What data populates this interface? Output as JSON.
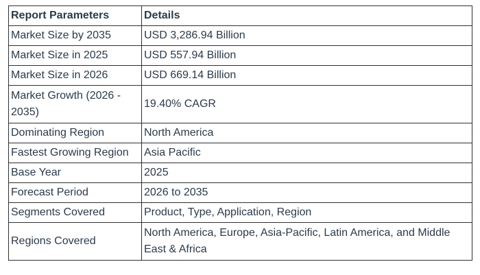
{
  "table": {
    "headers": [
      "Report Parameters",
      "Details"
    ],
    "rows": [
      {
        "param": "Market Size by 2035",
        "detail": "USD 3,286.94 Billion"
      },
      {
        "param": "Market Size in 2025",
        "detail": "USD 557.94 Billion"
      },
      {
        "param": "Market Size in 2026",
        "detail": "USD 669.14 Billion"
      },
      {
        "param": "Market Growth (2026 - 2035)",
        "detail": "19.40% CAGR"
      },
      {
        "param": "Dominating Region",
        "detail": "North America"
      },
      {
        "param": "Fastest Growing Region",
        "detail": "Asia Pacific"
      },
      {
        "param": "Base Year",
        "detail": "2025"
      },
      {
        "param": "Forecast Period",
        "detail": "2026 to 2035"
      },
      {
        "param": "Segments Covered",
        "detail": "Product, Type, Application, Region"
      },
      {
        "param": "Regions Covered",
        "detail": "North America, Europe, Asia-Pacific, Latin America, and Middle East & Africa"
      }
    ]
  }
}
